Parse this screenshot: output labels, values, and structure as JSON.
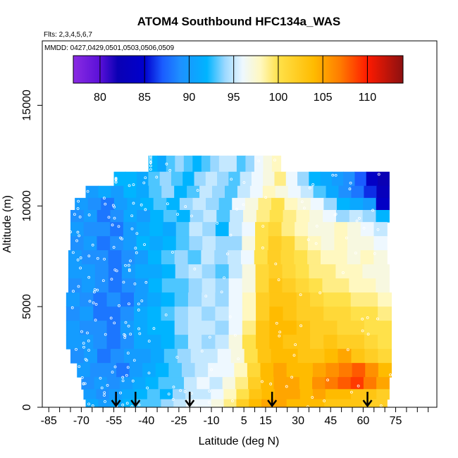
{
  "chart_data": {
    "type": "heatmap",
    "title": "ATOM4 Southbound HFC134a_WAS",
    "flights_text": "Flts: 2,3,4,5,6,7",
    "dates_text": "MMDD: 0427,0429,0501,0503,0506,0509",
    "xlabel": "Latitude (deg N)",
    "ylabel": "Altitude (m)",
    "xlim": [
      -88,
      94
    ],
    "ylim": [
      0,
      18200
    ],
    "x_ticks": [
      -85,
      -80,
      -75,
      -70,
      -65,
      -60,
      -55,
      -50,
      -45,
      -40,
      -35,
      -30,
      -25,
      -20,
      -15,
      -10,
      -5,
      0,
      5,
      10,
      15,
      20,
      25,
      30,
      35,
      40,
      45,
      50,
      55,
      60,
      65,
      70,
      75,
      80,
      85,
      90
    ],
    "x_tick_labels": [
      {
        "value": -85,
        "label": "-85"
      },
      {
        "value": -70,
        "label": "-70"
      },
      {
        "value": -55,
        "label": "-55"
      },
      {
        "value": -40,
        "label": "-40"
      },
      {
        "value": -25,
        "label": "-25"
      },
      {
        "value": -10,
        "label": "-10"
      },
      {
        "value": 5,
        "label": "5"
      },
      {
        "value": 15,
        "label": "15"
      },
      {
        "value": 30,
        "label": "30"
      },
      {
        "value": 45,
        "label": "45"
      },
      {
        "value": 60,
        "label": "60"
      },
      {
        "value": 75,
        "label": "75"
      }
    ],
    "y_tick_labels": [
      {
        "value": 0,
        "label": "0"
      },
      {
        "value": 5000,
        "label": "5000"
      },
      {
        "value": 10000,
        "label": "10000"
      },
      {
        "value": 15000,
        "label": "15000"
      }
    ],
    "colorbar": {
      "min": 77,
      "max": 114,
      "tick_labels": [
        {
          "value": 80,
          "label": "80"
        },
        {
          "value": 85,
          "label": "85"
        },
        {
          "value": 90,
          "label": "90"
        },
        {
          "value": 95,
          "label": "95"
        },
        {
          "value": 100,
          "label": "100"
        },
        {
          "value": 105,
          "label": "105"
        },
        {
          "value": 110,
          "label": "110"
        }
      ],
      "stops": [
        {
          "v": 77,
          "c": "#8a2be2"
        },
        {
          "v": 80,
          "c": "#5a10d8"
        },
        {
          "v": 82,
          "c": "#0a00b4"
        },
        {
          "v": 85,
          "c": "#0000cd"
        },
        {
          "v": 87,
          "c": "#1a5cff"
        },
        {
          "v": 89,
          "c": "#1e90ff"
        },
        {
          "v": 92,
          "c": "#00b4ff"
        },
        {
          "v": 94,
          "c": "#9ad8ff"
        },
        {
          "v": 96,
          "c": "#eef8ff"
        },
        {
          "v": 98,
          "c": "#fff8c0"
        },
        {
          "v": 100,
          "c": "#ffe14a"
        },
        {
          "v": 104,
          "c": "#ffbb00"
        },
        {
          "v": 107,
          "c": "#ff7a00"
        },
        {
          "v": 110,
          "c": "#ff1a00"
        },
        {
          "v": 114,
          "c": "#8b1010"
        }
      ]
    },
    "curtain_rows": [
      {
        "alt": [
          11700,
          12500
        ],
        "lat_start": -39,
        "lat_end": 22,
        "values": [
          92,
          91,
          93,
          94,
          93,
          92,
          93,
          94,
          95,
          95,
          93,
          94,
          96,
          97,
          98
        ]
      },
      {
        "alt": [
          11000,
          11700
        ],
        "lat_start": -55,
        "lat_end": 72,
        "values": [
          92,
          92,
          91,
          93,
          94,
          93,
          92,
          94,
          95,
          94,
          93,
          95,
          96,
          97,
          99,
          96,
          94,
          92,
          91,
          90,
          89,
          87,
          84,
          82
        ]
      },
      {
        "alt": [
          10400,
          11000
        ],
        "lat_start": -68,
        "lat_end": 72,
        "values": [
          90,
          91,
          90,
          92,
          91,
          93,
          94,
          92,
          93,
          95,
          94,
          93,
          95,
          96,
          98,
          97,
          96,
          95,
          93,
          91,
          89,
          88,
          86,
          83
        ]
      },
      {
        "alt": [
          9800,
          10400
        ],
        "lat_start": -73,
        "lat_end": 72,
        "values": [
          90,
          89,
          88,
          90,
          91,
          92,
          93,
          92,
          94,
          95,
          94,
          93,
          96,
          97,
          99,
          100,
          98,
          97,
          96,
          94,
          92,
          91,
          90,
          84
        ]
      },
      {
        "alt": [
          9200,
          9800
        ],
        "lat_start": -75,
        "lat_end": 72,
        "values": [
          89,
          90,
          88,
          89,
          91,
          90,
          92,
          93,
          92,
          94,
          95,
          93,
          95,
          97,
          99,
          100,
          99,
          98,
          97,
          96,
          94,
          95,
          94,
          92
        ]
      },
      {
        "alt": [
          8500,
          9200
        ],
        "lat_start": -75,
        "lat_end": 71,
        "values": [
          90,
          89,
          89,
          88,
          90,
          91,
          92,
          91,
          93,
          95,
          94,
          92,
          95,
          96,
          100,
          101,
          99,
          98,
          97,
          97,
          98,
          97,
          96,
          95
        ]
      },
      {
        "alt": [
          7800,
          8500
        ],
        "lat_start": -75,
        "lat_end": 71,
        "values": [
          89,
          90,
          88,
          89,
          90,
          92,
          91,
          92,
          93,
          94,
          95,
          94,
          94,
          97,
          100,
          102,
          101,
          99,
          98,
          97,
          98,
          97,
          97,
          96
        ]
      },
      {
        "alt": [
          7100,
          7800
        ],
        "lat_start": -76,
        "lat_end": 71,
        "values": [
          90,
          89,
          89,
          88,
          89,
          90,
          92,
          93,
          94,
          93,
          95,
          94,
          95,
          96,
          100,
          102,
          101,
          100,
          99,
          98,
          98,
          97,
          98,
          97
        ]
      },
      {
        "alt": [
          6400,
          7100
        ],
        "lat_start": -76,
        "lat_end": 72,
        "values": [
          90,
          90,
          89,
          88,
          90,
          91,
          91,
          92,
          94,
          95,
          94,
          93,
          95,
          97,
          101,
          102,
          101,
          100,
          99,
          99,
          98,
          98,
          97,
          97
        ]
      },
      {
        "alt": [
          5700,
          6400
        ],
        "lat_start": -76,
        "lat_end": 72,
        "values": [
          89,
          90,
          89,
          88,
          89,
          90,
          92,
          93,
          93,
          94,
          95,
          94,
          96,
          97,
          101,
          103,
          102,
          101,
          100,
          99,
          99,
          98,
          98,
          97
        ]
      },
      {
        "alt": [
          5000,
          5700
        ],
        "lat_start": -77,
        "lat_end": 73,
        "values": [
          90,
          89,
          88,
          89,
          88,
          90,
          91,
          92,
          93,
          94,
          95,
          94,
          96,
          98,
          102,
          103,
          103,
          102,
          101,
          100,
          100,
          99,
          99,
          98
        ]
      },
      {
        "alt": [
          4300,
          5000
        ],
        "lat_start": -77,
        "lat_end": 73,
        "values": [
          89,
          90,
          88,
          88,
          89,
          91,
          92,
          93,
          94,
          95,
          94,
          95,
          96,
          98,
          102,
          104,
          103,
          102,
          102,
          101,
          101,
          100,
          100,
          99
        ]
      },
      {
        "alt": [
          3600,
          4300
        ],
        "lat_start": -77,
        "lat_end": 73,
        "values": [
          90,
          89,
          89,
          88,
          90,
          91,
          92,
          92,
          94,
          95,
          95,
          94,
          96,
          99,
          103,
          104,
          104,
          103,
          102,
          102,
          101,
          101,
          100,
          100
        ]
      },
      {
        "alt": [
          2900,
          3600
        ],
        "lat_start": -77,
        "lat_end": 73,
        "values": [
          90,
          90,
          89,
          88,
          89,
          91,
          91,
          92,
          93,
          95,
          94,
          95,
          97,
          100,
          103,
          104,
          103,
          103,
          102,
          103,
          102,
          102,
          101,
          100
        ]
      },
      {
        "alt": [
          2200,
          2900
        ],
        "lat_start": -75,
        "lat_end": 73,
        "values": [
          89,
          90,
          88,
          89,
          90,
          90,
          91,
          93,
          94,
          95,
          95,
          96,
          97,
          100,
          103,
          104,
          104,
          103,
          103,
          104,
          105,
          103,
          102,
          101
        ]
      },
      {
        "alt": [
          1500,
          2200
        ],
        "lat_start": -72,
        "lat_end": 73,
        "values": [
          90,
          89,
          89,
          88,
          90,
          91,
          92,
          93,
          94,
          95,
          96,
          96,
          98,
          101,
          104,
          105,
          104,
          104,
          105,
          106,
          107,
          108,
          106,
          104
        ]
      },
      {
        "alt": [
          900,
          1500
        ],
        "lat_start": -70,
        "lat_end": 72,
        "values": [
          89,
          90,
          89,
          90,
          91,
          92,
          93,
          93,
          95,
          96,
          95,
          97,
          99,
          102,
          104,
          105,
          105,
          104,
          106,
          107,
          108,
          109,
          107,
          105
        ]
      },
      {
        "alt": [
          400,
          900
        ],
        "lat_start": -69,
        "lat_end": 72,
        "values": [
          90,
          89,
          90,
          91,
          92,
          93,
          92,
          94,
          95,
          95,
          96,
          98,
          100,
          103,
          104,
          105,
          105,
          104,
          105,
          104,
          104,
          103,
          103,
          102
        ]
      },
      {
        "alt": [
          0,
          400
        ],
        "lat_start": -68,
        "lat_end": 71,
        "values": [
          91,
          90,
          91,
          92,
          93,
          93,
          94,
          95,
          96,
          96,
          97,
          99,
          102,
          104,
          105,
          105,
          104,
          104,
          104,
          103,
          103,
          103,
          102,
          102
        ]
      }
    ],
    "sample_points_note_free": true,
    "descent_markers_lat": [
      -54,
      -45,
      -20,
      18,
      62
    ]
  }
}
